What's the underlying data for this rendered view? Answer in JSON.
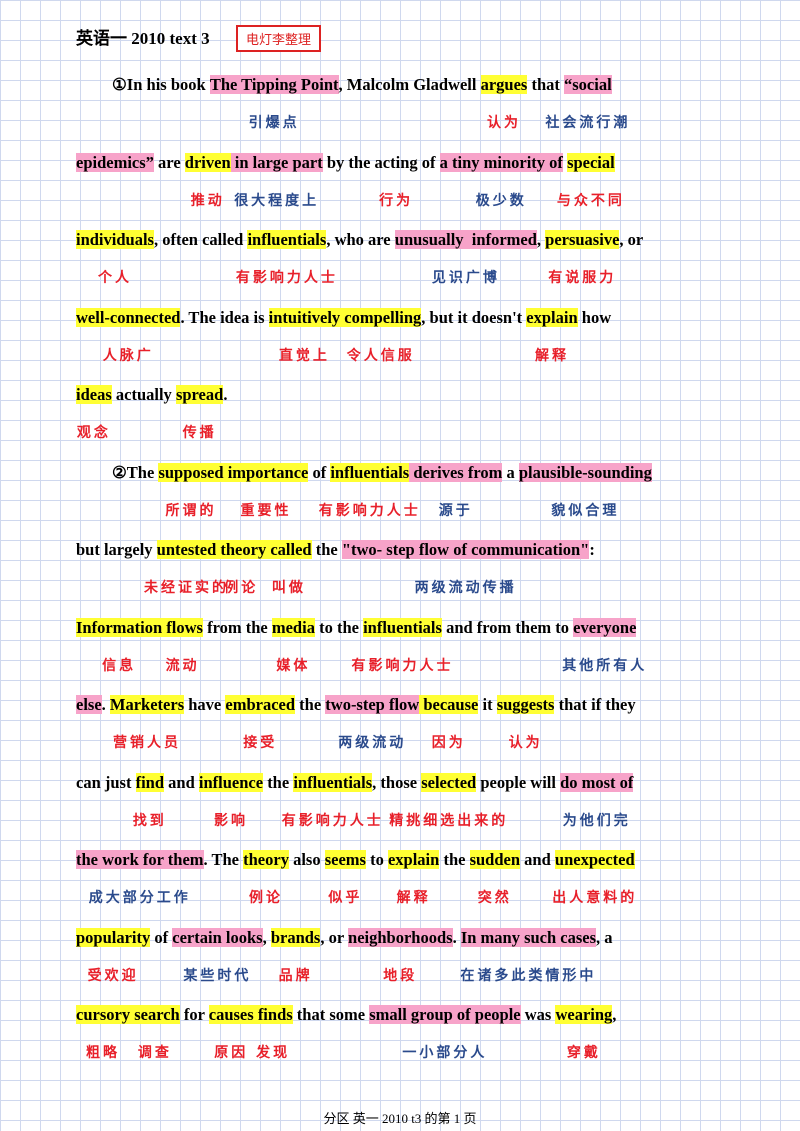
{
  "header": {
    "title": "英语一 2010 text 3",
    "stamp": "电灯李整理"
  },
  "lines": [
    {
      "indent": true,
      "segments": [
        {
          "text": "①In his book "
        },
        {
          "text": "The Tipping Point",
          "highlight": "#f7a3c9",
          "note": "引爆点",
          "note_color": "#2a4a8c"
        },
        {
          "text": ", Malcolm Gladwell "
        },
        {
          "text": "argues",
          "highlight": "#ffff33",
          "note": "认为",
          "note_color": "#e8202a"
        },
        {
          "text": " that "
        },
        {
          "text": "“social",
          "highlight": "#f7a3c9",
          "note": "社会流行潮",
          "note_color": "#2a4a8c"
        }
      ]
    },
    {
      "segments": [
        {
          "text": "epidemics”",
          "highlight": "#f7a3c9"
        },
        {
          "text": " are "
        },
        {
          "text": "driven",
          "highlight": "#ffff33",
          "note": "推动",
          "note_color": "#e8202a"
        },
        {
          "text": " in large part",
          "highlight": "#f7a3c9",
          "note": "很大程度上",
          "note_color": "#2a4a8c"
        },
        {
          "text": " by the "
        },
        {
          "text": "acting",
          "note": "行为",
          "note_color": "#e8202a"
        },
        {
          "text": " of "
        },
        {
          "text": "a tiny minority of",
          "highlight": "#f7a3c9",
          "note": "极少数",
          "note_color": "#2a4a8c"
        },
        {
          "text": " "
        },
        {
          "text": "special",
          "highlight": "#ffff33",
          "note": "与众不同",
          "note_color": "#e8202a"
        }
      ]
    },
    {
      "segments": [
        {
          "text": "individuals",
          "highlight": "#ffff33",
          "note": "个人",
          "note_color": "#e8202a"
        },
        {
          "text": ", often called "
        },
        {
          "text": "influentials",
          "highlight": "#ffff33",
          "note": "有影响力人士",
          "note_color": "#e8202a"
        },
        {
          "text": ", who are "
        },
        {
          "text": "unusually  informed",
          "highlight": "#f7a3c9",
          "note": "见识广博",
          "note_color": "#2a4a8c"
        },
        {
          "text": ", "
        },
        {
          "text": "persuasive",
          "highlight": "#ffff33",
          "note": "有说服力",
          "note_color": "#e8202a"
        },
        {
          "text": ", or"
        }
      ]
    },
    {
      "segments": [
        {
          "text": "well-connected",
          "highlight": "#ffff33",
          "note": "人脉广",
          "note_color": "#e8202a"
        },
        {
          "text": ". The idea is "
        },
        {
          "text": "intuitively",
          "highlight": "#ffff33",
          "note": "直觉上",
          "note_color": "#e8202a"
        },
        {
          "text": " compelling",
          "highlight": "#ffff33",
          "note": "令人信服",
          "note_color": "#e8202a"
        },
        {
          "text": ", but it doesn't "
        },
        {
          "text": "explain",
          "highlight": "#ffff33",
          "note": "解释",
          "note_color": "#e8202a"
        },
        {
          "text": " how"
        }
      ]
    },
    {
      "segments": [
        {
          "text": "ideas",
          "highlight": "#ffff33",
          "note": "观念",
          "note_color": "#e8202a"
        },
        {
          "text": " actually "
        },
        {
          "text": "spread",
          "highlight": "#ffff33",
          "note": "传播",
          "note_color": "#e8202a"
        },
        {
          "text": "."
        }
      ]
    },
    {
      "indent": true,
      "segments": [
        {
          "text": "②The "
        },
        {
          "text": "supposed",
          "highlight": "#ffff33",
          "note": "所谓的",
          "note_color": "#e8202a"
        },
        {
          "text": " importance",
          "highlight": "#ffff33",
          "note": "重要性",
          "note_color": "#e8202a"
        },
        {
          "text": " of "
        },
        {
          "text": "influentials",
          "highlight": "#ffff33",
          "note": "有影响力人士",
          "note_color": "#e8202a"
        },
        {
          "text": " derives from",
          "highlight": "#f7a3c9",
          "note": "源于",
          "note_color": "#2a4a8c"
        },
        {
          "text": " a "
        },
        {
          "text": "plausible-sounding",
          "highlight": "#f7a3c9",
          "note": "貌似合理",
          "note_color": "#2a4a8c"
        }
      ]
    },
    {
      "segments": [
        {
          "text": "but largely "
        },
        {
          "text": "untested",
          "highlight": "#ffff33",
          "note": "未经证实的",
          "note_color": "#e8202a"
        },
        {
          "text": " theory",
          "highlight": "#ffff33",
          "note": "例论",
          "note_color": "#e8202a"
        },
        {
          "text": " called",
          "highlight": "#ffff33",
          "note": "叫做",
          "note_color": "#e8202a"
        },
        {
          "text": " the "
        },
        {
          "text": "\"two- step flow of communication\"",
          "highlight": "#f7a3c9",
          "note": "两级流动传播",
          "note_color": "#2a4a8c"
        },
        {
          "text": ":"
        }
      ]
    },
    {
      "segments": [
        {
          "text": "Information",
          "highlight": "#ffff33",
          "note": "信息",
          "note_color": "#e8202a"
        },
        {
          "text": " flows",
          "highlight": "#ffff33",
          "note": "流动",
          "note_color": "#e8202a"
        },
        {
          "text": " from the "
        },
        {
          "text": "media",
          "highlight": "#ffff33",
          "note": "媒体",
          "note_color": "#e8202a"
        },
        {
          "text": " to the "
        },
        {
          "text": "influentials",
          "highlight": "#ffff33",
          "note": "有影响力人士",
          "note_color": "#e8202a"
        },
        {
          "text": " and from them to "
        },
        {
          "text": "everyone",
          "highlight": "#f7a3c9",
          "note": "其他所有人",
          "note_color": "#2a4a8c"
        }
      ]
    },
    {
      "segments": [
        {
          "text": "else",
          "highlight": "#f7a3c9"
        },
        {
          "text": ". "
        },
        {
          "text": "Marketers",
          "highlight": "#ffff33",
          "note": "营销人员",
          "note_color": "#e8202a"
        },
        {
          "text": " have "
        },
        {
          "text": "embraced",
          "highlight": "#ffff33",
          "note": "接受",
          "note_color": "#e8202a"
        },
        {
          "text": " the "
        },
        {
          "text": "two-step flow",
          "highlight": "#f7a3c9",
          "note": "两级流动",
          "note_color": "#2a4a8c"
        },
        {
          "text": " because",
          "highlight": "#ffff33",
          "note": "因为",
          "note_color": "#e8202a"
        },
        {
          "text": " it "
        },
        {
          "text": "suggests",
          "highlight": "#ffff33",
          "note": "认为",
          "note_color": "#e8202a"
        },
        {
          "text": " that if they"
        }
      ]
    },
    {
      "segments": [
        {
          "text": "can just "
        },
        {
          "text": "find",
          "highlight": "#ffff33",
          "note": "找到",
          "note_color": "#e8202a"
        },
        {
          "text": " and "
        },
        {
          "text": "influence",
          "highlight": "#ffff33",
          "note": "影响",
          "note_color": "#e8202a"
        },
        {
          "text": " the "
        },
        {
          "text": "influentials",
          "highlight": "#ffff33",
          "note": "有影响力人士",
          "note_color": "#e8202a"
        },
        {
          "text": ", those "
        },
        {
          "text": "selected",
          "highlight": "#ffff33",
          "note": "精挑细选出来的",
          "note_color": "#e8202a"
        },
        {
          "text": " people will "
        },
        {
          "text": "do most of",
          "highlight": "#f7a3c9",
          "note": "为他们完",
          "note_color": "#2a4a8c"
        }
      ]
    },
    {
      "segments": [
        {
          "text": "the work for them",
          "highlight": "#f7a3c9",
          "note": "成大部分工作",
          "note_color": "#2a4a8c"
        },
        {
          "text": ". The "
        },
        {
          "text": "theory",
          "highlight": "#ffff33",
          "note": "例论",
          "note_color": "#e8202a"
        },
        {
          "text": " also "
        },
        {
          "text": "seems",
          "highlight": "#ffff33",
          "note": "似乎",
          "note_color": "#e8202a"
        },
        {
          "text": " to "
        },
        {
          "text": "explain",
          "highlight": "#ffff33",
          "note": "解释",
          "note_color": "#e8202a"
        },
        {
          "text": " the "
        },
        {
          "text": "sudden",
          "highlight": "#ffff33",
          "note": "突然",
          "note_color": "#e8202a"
        },
        {
          "text": " and "
        },
        {
          "text": "unexpected",
          "highlight": "#ffff33",
          "note": "出人意料的",
          "note_color": "#e8202a"
        }
      ]
    },
    {
      "segments": [
        {
          "text": "popularity",
          "highlight": "#ffff33",
          "note": "受欢迎",
          "note_color": "#e8202a"
        },
        {
          "text": " of "
        },
        {
          "text": "certain looks",
          "highlight": "#f7a3c9",
          "note": "某些时代",
          "note_color": "#2a4a8c"
        },
        {
          "text": ", "
        },
        {
          "text": "brands",
          "highlight": "#ffff33",
          "note": "品牌",
          "note_color": "#e8202a"
        },
        {
          "text": ", or "
        },
        {
          "text": "neighborhoods",
          "highlight": "#f7a3c9",
          "note": "地段",
          "note_color": "#e8202a"
        },
        {
          "text": ". "
        },
        {
          "text": "In many such cases",
          "highlight": "#f7a3c9",
          "note": "在诸多此类情形中",
          "note_color": "#2a4a8c"
        },
        {
          "text": ", a"
        }
      ]
    },
    {
      "segments": [
        {
          "text": "cursory",
          "highlight": "#ffff33",
          "note": "粗略",
          "note_color": "#e8202a"
        },
        {
          "text": " search",
          "highlight": "#ffff33",
          "note": "调查",
          "note_color": "#e8202a"
        },
        {
          "text": " for "
        },
        {
          "text": "causes",
          "highlight": "#ffff33",
          "note": "原因",
          "note_color": "#e8202a"
        },
        {
          "text": " finds",
          "highlight": "#ffff33",
          "note": "发现",
          "note_color": "#e8202a"
        },
        {
          "text": " that some "
        },
        {
          "text": "small group of people",
          "highlight": "#f7a3c9",
          "note": "一小部分人",
          "note_color": "#2a4a8c"
        },
        {
          "text": " was "
        },
        {
          "text": "wearing",
          "highlight": "#ffff33",
          "note": "穿戴",
          "note_color": "#e8202a"
        },
        {
          "text": ","
        }
      ]
    }
  ],
  "footer": "分区 英一 2010 t3 的第 1 页"
}
